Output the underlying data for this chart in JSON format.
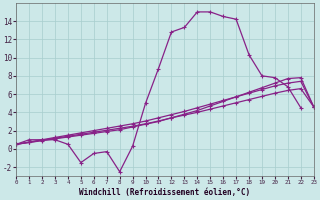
{
  "background_color": "#cce8e8",
  "grid_color": "#a8cece",
  "line_color": "#882288",
  "xlabel": "Windchill (Refroidissement éolien,°C)",
  "xlim": [
    0,
    23
  ],
  "ylim": [
    -3,
    16
  ],
  "yticks": [
    -2,
    0,
    2,
    4,
    6,
    8,
    10,
    12,
    14
  ],
  "xticks": [
    0,
    1,
    2,
    3,
    4,
    5,
    6,
    7,
    8,
    9,
    10,
    11,
    12,
    13,
    14,
    15,
    16,
    17,
    18,
    19,
    20,
    21,
    22,
    23
  ],
  "series1_x": [
    0,
    1,
    2,
    3,
    4,
    5,
    6,
    7,
    8,
    9,
    10,
    11,
    12,
    13,
    14,
    15,
    16,
    17,
    18,
    19,
    20,
    21,
    22
  ],
  "series1_y": [
    0.5,
    1.0,
    1.0,
    1.0,
    0.5,
    -1.5,
    -0.5,
    -0.3,
    -2.5,
    0.3,
    5.0,
    8.8,
    12.8,
    13.3,
    15.0,
    15.0,
    14.5,
    14.2,
    10.3,
    8.0,
    7.8,
    6.8,
    4.5
  ],
  "series2_x": [
    0,
    1,
    2,
    3,
    4,
    5,
    6,
    7,
    8,
    9,
    10,
    11,
    12,
    13,
    14,
    15,
    16,
    17,
    18,
    19,
    20,
    21,
    22,
    23
  ],
  "series2_y": [
    0.5,
    0.7,
    0.9,
    1.1,
    1.3,
    1.5,
    1.7,
    1.9,
    2.1,
    2.4,
    2.7,
    3.0,
    3.4,
    3.8,
    4.2,
    4.7,
    5.2,
    5.7,
    6.2,
    6.7,
    7.2,
    7.7,
    7.8,
    4.6
  ],
  "series3_x": [
    0,
    1,
    2,
    3,
    4,
    5,
    6,
    7,
    8,
    9,
    10,
    11,
    12,
    13,
    14,
    15,
    16,
    17,
    18,
    19,
    20,
    21,
    22,
    23
  ],
  "series3_y": [
    0.5,
    0.75,
    1.0,
    1.25,
    1.5,
    1.75,
    2.0,
    2.25,
    2.5,
    2.75,
    3.05,
    3.4,
    3.75,
    4.1,
    4.5,
    4.9,
    5.3,
    5.7,
    6.1,
    6.5,
    6.9,
    7.2,
    7.4,
    4.6
  ],
  "series4_x": [
    0,
    1,
    2,
    3,
    4,
    5,
    6,
    7,
    8,
    9,
    10,
    11,
    12,
    13,
    14,
    15,
    16,
    17,
    18,
    19,
    20,
    21,
    22,
    23
  ],
  "series4_y": [
    0.5,
    0.72,
    0.94,
    1.16,
    1.38,
    1.6,
    1.82,
    2.04,
    2.26,
    2.48,
    2.75,
    3.05,
    3.4,
    3.7,
    4.0,
    4.35,
    4.7,
    5.05,
    5.4,
    5.75,
    6.1,
    6.4,
    6.6,
    4.6
  ]
}
